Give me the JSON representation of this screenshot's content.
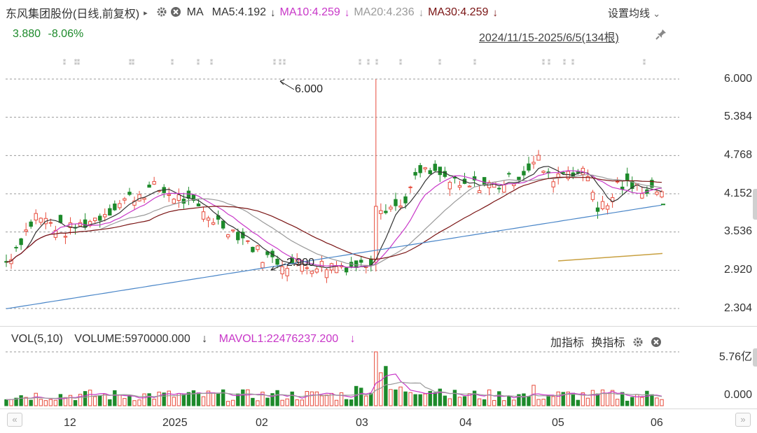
{
  "header": {
    "stock_name": "东风集团股份(日线,前复权)",
    "caret": "▸",
    "gear_icon": "gear-icon",
    "close_icon": "close-icon",
    "ma_label": "MA",
    "ma5": "MA5:4.192",
    "ma10": "MA10:4.259",
    "ma20": "MA20:4.236",
    "ma30": "MA30:4.259",
    "arrow": "↓",
    "settings": "设置均线",
    "settings_caret": "⌄"
  },
  "quote": {
    "price": "3.880",
    "change": "-8.06%"
  },
  "range": {
    "text": "2024/11/15-2025/6/5(134根)",
    "pin_icon": "pin-icon"
  },
  "volume_panel": {
    "indicator": "VOL(5,10)",
    "volume": "VOLUME:5970000.000",
    "mavol": "MAVOL1:22476237.200",
    "arrow": "↓",
    "add_indicator": "加指标",
    "switch_indicator": "换指标",
    "y_top": "5.76亿",
    "y_bottom": "0.000"
  },
  "nav": {
    "left": "«",
    "right": "»"
  },
  "colors": {
    "up": "#e74c3c",
    "down": "#1d8a2b",
    "ma5": "#333333",
    "ma10": "#c837c8",
    "ma20": "#9a9a9a",
    "ma30": "#7a1414",
    "ma_long": "#4a86c8",
    "ma_gold": "#c8a040"
  },
  "chart_data": {
    "type": "candlestick",
    "y_ticks": [
      "6.000",
      "5.384",
      "4.768",
      "4.152",
      "3.536",
      "2.920",
      "2.304"
    ],
    "x_ticks": [
      "12",
      "2025",
      "02",
      "03",
      "04",
      "05",
      "06"
    ],
    "annotations": [
      {
        "label": "6.000"
      },
      {
        "label": "2.900"
      }
    ],
    "high_point": 6.0,
    "low_point": 2.9,
    "grid": true
  }
}
